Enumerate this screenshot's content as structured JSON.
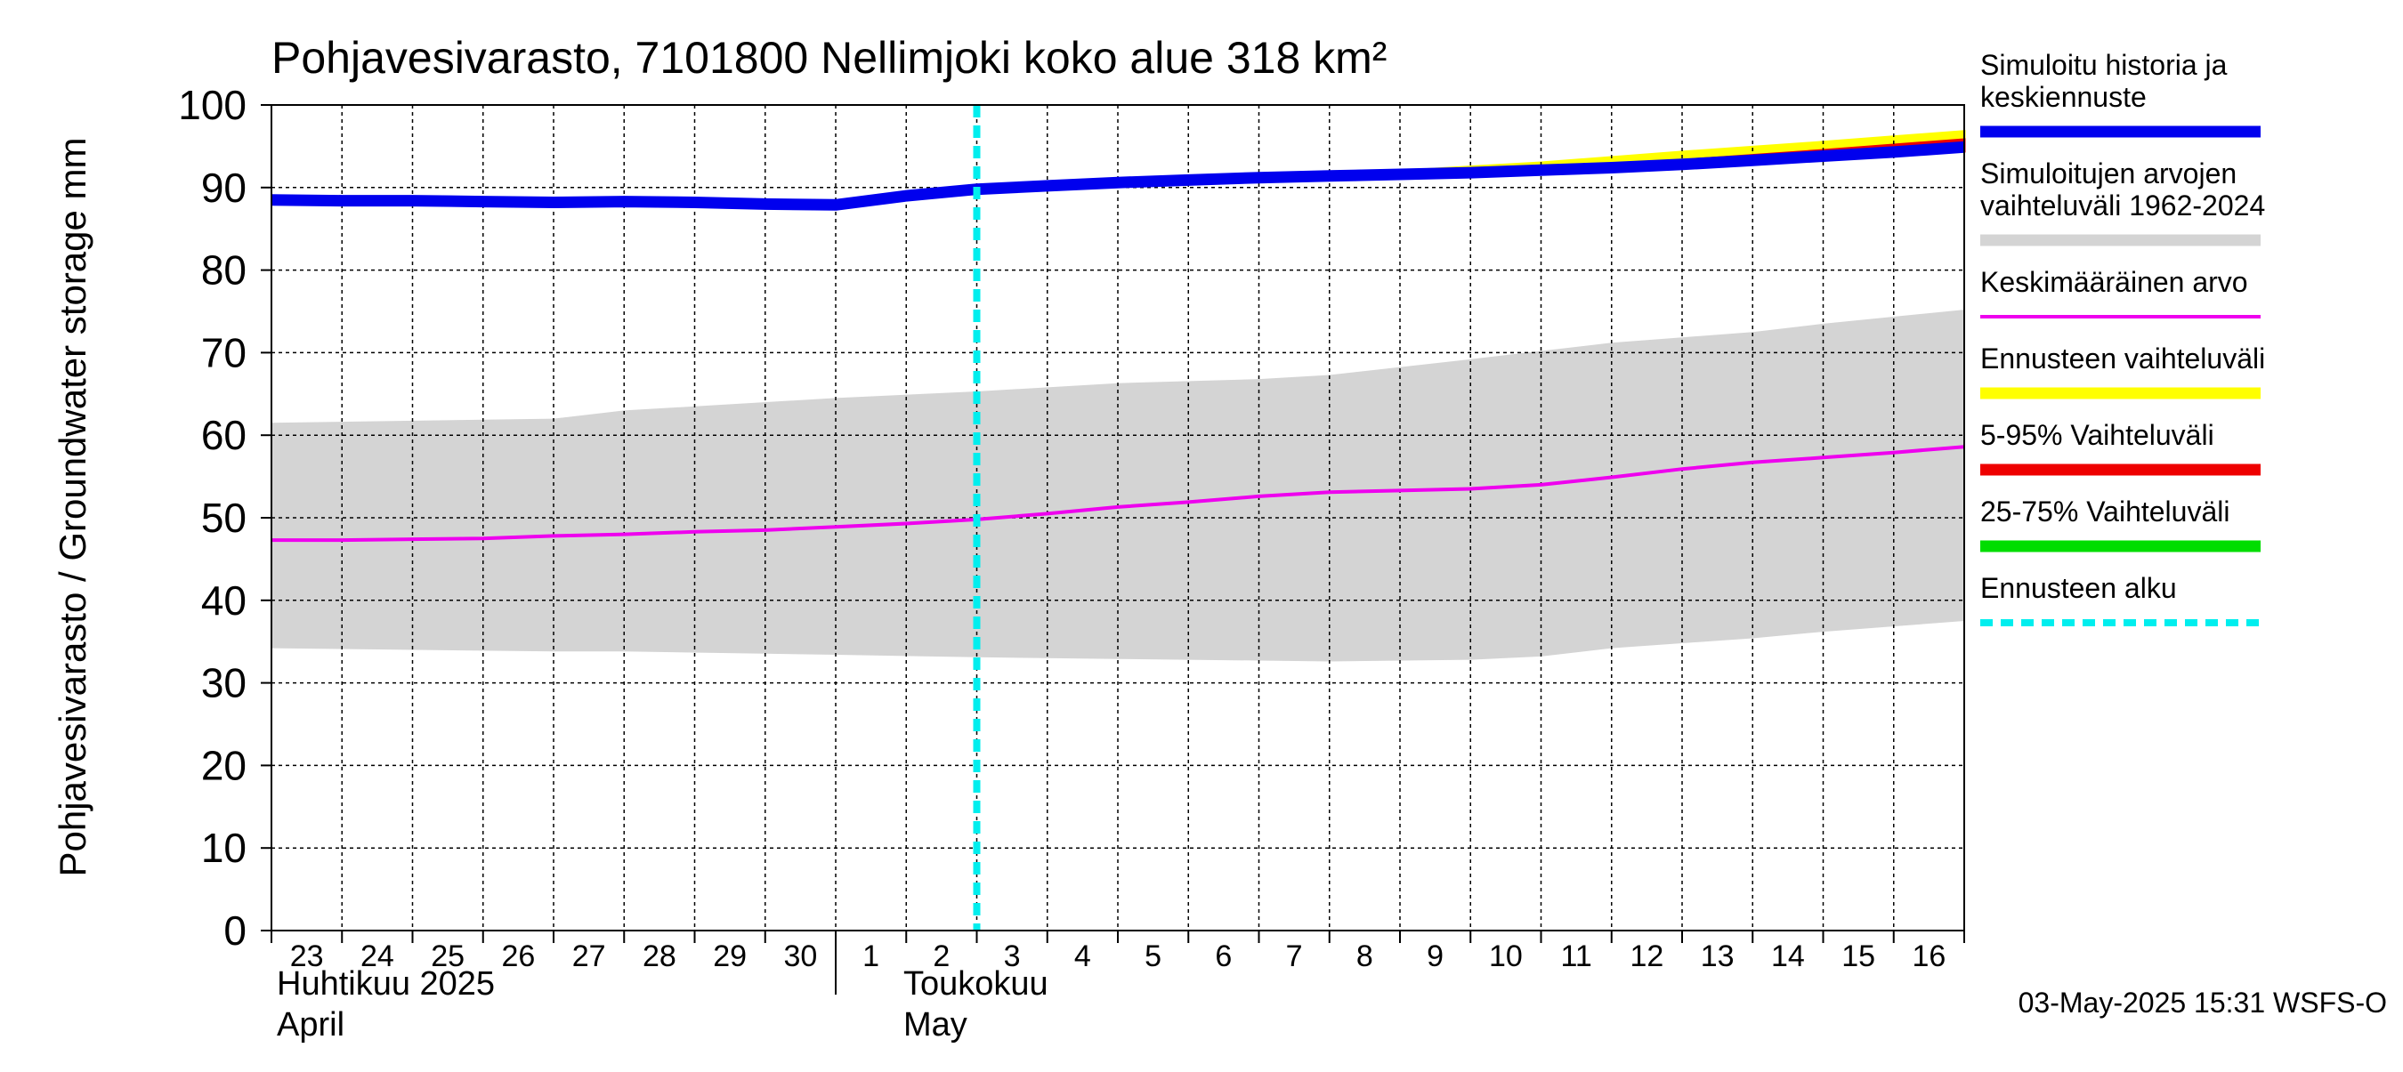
{
  "chart_data": {
    "type": "line",
    "title": "Pohjavesivarasto, 7101800 Nellimjoki koko alue 318 km²",
    "ylabel": "Pohjavesivarasto / Groundwater storage   mm",
    "ylim": [
      0,
      100
    ],
    "yticks": [
      0,
      10,
      20,
      30,
      40,
      50,
      60,
      70,
      80,
      90,
      100
    ],
    "xlim": [
      "2025-04-23",
      "2025-05-17"
    ],
    "x_tick_labels": [
      "23",
      "24",
      "25",
      "26",
      "27",
      "28",
      "29",
      "30",
      "1",
      "2",
      "3",
      "4",
      "5",
      "6",
      "7",
      "8",
      "9",
      "10",
      "11",
      "12",
      "13",
      "14",
      "15",
      "16"
    ],
    "month_labels": [
      {
        "fi": "Huhtikuu  2025",
        "en": "April"
      },
      {
        "fi": "Toukokuu",
        "en": "May"
      }
    ],
    "grid": true,
    "legend_position": "right",
    "forecast_start": "2025-05-03",
    "footer": "03-May-2025 15:31 WSFS-O",
    "colors": {
      "history": "#0000ee",
      "range": "#d4d4d4",
      "mean": "#ee00ee",
      "forecast_range": "#ffff00",
      "p5_95": "#ee0000",
      "p25_75": "#00dd00",
      "forecast_start": "#00eeee"
    },
    "legend": [
      {
        "label": "Simuloitu historia ja keskiennuste",
        "key": "history",
        "style": "thick"
      },
      {
        "label": "Simuloitujen arvojen vaihteluväli 1962-2024",
        "key": "range",
        "style": "thick"
      },
      {
        "label": "Keskimääräinen arvo",
        "key": "mean",
        "style": "thin"
      },
      {
        "label": "Ennusteen vaihteluväli",
        "key": "forecast_range",
        "style": "thick"
      },
      {
        "label": "5-95% Vaihteluväli",
        "key": "p5_95",
        "style": "thick"
      },
      {
        "label": "25-75% Vaihteluväli",
        "key": "p25_75",
        "style": "thick"
      },
      {
        "label": "Ennusteen alku",
        "key": "forecast_start",
        "style": "dashed"
      }
    ],
    "series": [
      {
        "name": "Simuloitu historia ja keskiennuste",
        "x": [
          "2025-04-23",
          "2025-04-24",
          "2025-04-25",
          "2025-04-26",
          "2025-04-27",
          "2025-04-28",
          "2025-04-29",
          "2025-04-30",
          "2025-05-01",
          "2025-05-02",
          "2025-05-03",
          "2025-05-04",
          "2025-05-05",
          "2025-05-06",
          "2025-05-07",
          "2025-05-08",
          "2025-05-09",
          "2025-05-10",
          "2025-05-11",
          "2025-05-12",
          "2025-05-13",
          "2025-05-14",
          "2025-05-15",
          "2025-05-16",
          "2025-05-17"
        ],
        "y": [
          88.5,
          88.4,
          88.4,
          88.3,
          88.2,
          88.3,
          88.2,
          88.0,
          87.9,
          89.0,
          89.8,
          90.2,
          90.6,
          90.9,
          91.2,
          91.4,
          91.6,
          91.8,
          92.1,
          92.4,
          92.8,
          93.3,
          93.8,
          94.3,
          94.9
        ]
      },
      {
        "name": "Simuloitujen arvojen vaihteluväli 1962-2024",
        "x": [
          "2025-04-23",
          "2025-04-27",
          "2025-04-28",
          "2025-05-01",
          "2025-05-03",
          "2025-05-05",
          "2025-05-07",
          "2025-05-08",
          "2025-05-10",
          "2025-05-11",
          "2025-05-12",
          "2025-05-14",
          "2025-05-15",
          "2025-05-17"
        ],
        "upper": [
          61.5,
          62.0,
          63.0,
          64.5,
          65.3,
          66.3,
          66.8,
          67.3,
          69.2,
          70.2,
          71.2,
          72.5,
          73.5,
          75.2
        ],
        "lower": [
          34.2,
          33.8,
          33.8,
          33.4,
          33.1,
          32.9,
          32.7,
          32.6,
          32.8,
          33.2,
          34.2,
          35.4,
          36.2,
          37.5
        ]
      },
      {
        "name": "Keskimääräinen arvo",
        "x": [
          "2025-04-23",
          "2025-04-24",
          "2025-04-25",
          "2025-04-26",
          "2025-04-27",
          "2025-04-28",
          "2025-04-29",
          "2025-04-30",
          "2025-05-01",
          "2025-05-02",
          "2025-05-03",
          "2025-05-04",
          "2025-05-05",
          "2025-05-06",
          "2025-05-07",
          "2025-05-08",
          "2025-05-09",
          "2025-05-10",
          "2025-05-11",
          "2025-05-12",
          "2025-05-13",
          "2025-05-14",
          "2025-05-15",
          "2025-05-16",
          "2025-05-17"
        ],
        "y": [
          47.3,
          47.3,
          47.4,
          47.5,
          47.8,
          48.0,
          48.3,
          48.5,
          48.9,
          49.3,
          49.8,
          50.5,
          51.3,
          51.9,
          52.6,
          53.1,
          53.3,
          53.5,
          54.0,
          54.9,
          55.9,
          56.7,
          57.3,
          57.9,
          58.6
        ]
      },
      {
        "name": "Ennusteen vaihteluväli",
        "x": [
          "2025-05-03",
          "2025-05-05",
          "2025-05-07",
          "2025-05-09",
          "2025-05-11",
          "2025-05-13",
          "2025-05-15",
          "2025-05-17"
        ],
        "upper": [
          89.8,
          90.6,
          91.3,
          92.0,
          93.0,
          94.3,
          95.5,
          96.8
        ],
        "lower": [
          89.8,
          90.6,
          91.2,
          91.6,
          92.0,
          92.7,
          93.6,
          94.4
        ]
      },
      {
        "name": "5-95% Vaihteluväli",
        "x": [
          "2025-05-03",
          "2025-05-05",
          "2025-05-07",
          "2025-05-09",
          "2025-05-11",
          "2025-05-13",
          "2025-05-15",
          "2025-05-17"
        ],
        "upper": [
          89.8,
          90.6,
          91.3,
          91.8,
          92.4,
          93.3,
          94.5,
          95.8
        ],
        "lower": [
          89.8,
          90.6,
          91.2,
          91.6,
          92.0,
          92.6,
          93.5,
          94.4
        ]
      }
    ]
  }
}
